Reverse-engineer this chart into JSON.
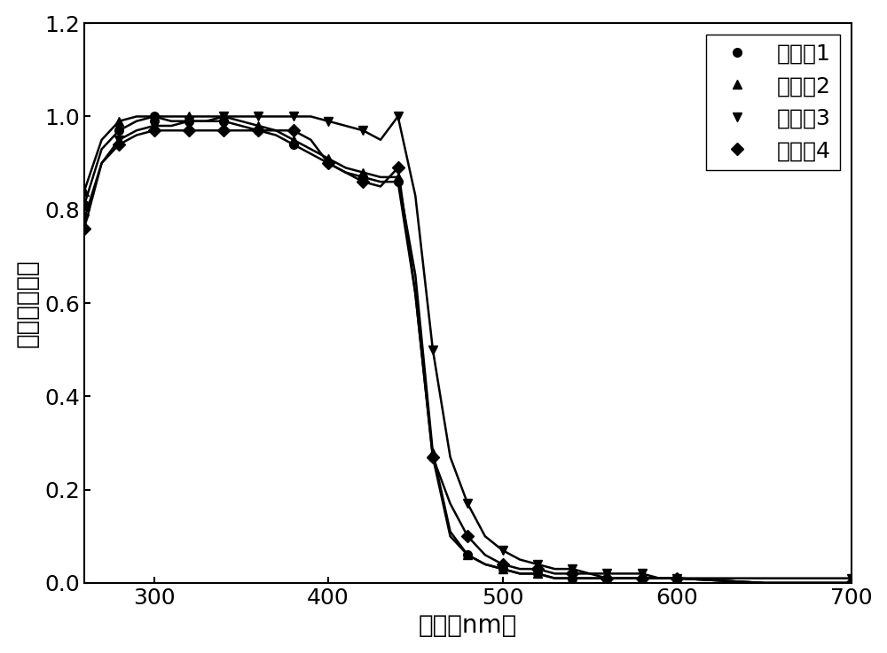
{
  "xlabel": "波长（nm）",
  "ylabel": "归一化吸光度",
  "xlim": [
    260,
    700
  ],
  "ylim": [
    0,
    1.2
  ],
  "yticks": [
    0.0,
    0.2,
    0.4,
    0.6,
    0.8,
    1.0,
    1.2
  ],
  "xticks": [
    300,
    400,
    500,
    600,
    700
  ],
  "series": [
    {
      "x": [
        260,
        270,
        280,
        290,
        300,
        310,
        320,
        330,
        340,
        350,
        360,
        370,
        380,
        390,
        400,
        410,
        420,
        430,
        440,
        450,
        460,
        470,
        480,
        490,
        500,
        510,
        520,
        530,
        540,
        550,
        560,
        570,
        580,
        590,
        600,
        650,
        700
      ],
      "y": [
        0.81,
        0.93,
        0.97,
        0.99,
        1.0,
        0.99,
        0.99,
        0.99,
        0.99,
        0.98,
        0.97,
        0.96,
        0.94,
        0.92,
        0.9,
        0.88,
        0.87,
        0.86,
        0.86,
        0.62,
        0.27,
        0.1,
        0.06,
        0.04,
        0.03,
        0.02,
        0.02,
        0.01,
        0.01,
        0.01,
        0.01,
        0.01,
        0.01,
        0.01,
        0.01,
        0.0,
        0.0
      ],
      "marker": "o",
      "color": "#000000",
      "label": "实施例1"
    },
    {
      "x": [
        260,
        270,
        280,
        290,
        300,
        310,
        320,
        330,
        340,
        350,
        360,
        370,
        380,
        390,
        400,
        410,
        420,
        430,
        440,
        450,
        460,
        470,
        480,
        490,
        500,
        510,
        520,
        530,
        540,
        550,
        560,
        570,
        580,
        590,
        600,
        650,
        700
      ],
      "y": [
        0.84,
        0.95,
        0.99,
        1.0,
        1.0,
        1.0,
        1.0,
        1.0,
        1.0,
        0.99,
        0.98,
        0.97,
        0.95,
        0.93,
        0.91,
        0.89,
        0.88,
        0.87,
        0.87,
        0.66,
        0.28,
        0.11,
        0.06,
        0.04,
        0.03,
        0.02,
        0.02,
        0.01,
        0.01,
        0.01,
        0.01,
        0.01,
        0.01,
        0.01,
        0.01,
        0.0,
        0.0
      ],
      "marker": "^",
      "color": "#000000",
      "label": "实施例2"
    },
    {
      "x": [
        260,
        270,
        280,
        290,
        300,
        310,
        320,
        330,
        340,
        350,
        360,
        370,
        380,
        390,
        400,
        410,
        420,
        430,
        440,
        450,
        460,
        470,
        480,
        490,
        500,
        510,
        520,
        530,
        540,
        550,
        560,
        570,
        580,
        590,
        600,
        650,
        700
      ],
      "y": [
        0.78,
        0.9,
        0.95,
        0.97,
        0.98,
        0.98,
        0.99,
        0.99,
        1.0,
        1.0,
        1.0,
        1.0,
        1.0,
        1.0,
        0.99,
        0.98,
        0.97,
        0.95,
        1.0,
        0.83,
        0.5,
        0.27,
        0.17,
        0.1,
        0.07,
        0.05,
        0.04,
        0.03,
        0.03,
        0.02,
        0.02,
        0.02,
        0.02,
        0.01,
        0.01,
        0.01,
        0.01
      ],
      "marker": "v",
      "color": "#000000",
      "label": "实施例3"
    },
    {
      "x": [
        260,
        270,
        280,
        290,
        300,
        310,
        320,
        330,
        340,
        350,
        360,
        370,
        380,
        390,
        400,
        410,
        420,
        430,
        440,
        450,
        460,
        470,
        480,
        490,
        500,
        510,
        520,
        530,
        540,
        550,
        560,
        570,
        580,
        590,
        600,
        650,
        700
      ],
      "y": [
        0.76,
        0.9,
        0.94,
        0.96,
        0.97,
        0.97,
        0.97,
        0.97,
        0.97,
        0.97,
        0.97,
        0.97,
        0.97,
        0.95,
        0.9,
        0.88,
        0.86,
        0.85,
        0.89,
        0.62,
        0.27,
        0.17,
        0.1,
        0.06,
        0.04,
        0.03,
        0.03,
        0.02,
        0.02,
        0.02,
        0.01,
        0.01,
        0.01,
        0.01,
        0.01,
        0.0,
        0.0
      ],
      "marker": "D",
      "color": "#000000",
      "label": "实施例4"
    }
  ],
  "linewidth": 1.8,
  "markersize": 7,
  "background_color": "#ffffff",
  "legend_fontsize": 18,
  "axis_fontsize": 20,
  "tick_fontsize": 18,
  "marker_every": 2
}
